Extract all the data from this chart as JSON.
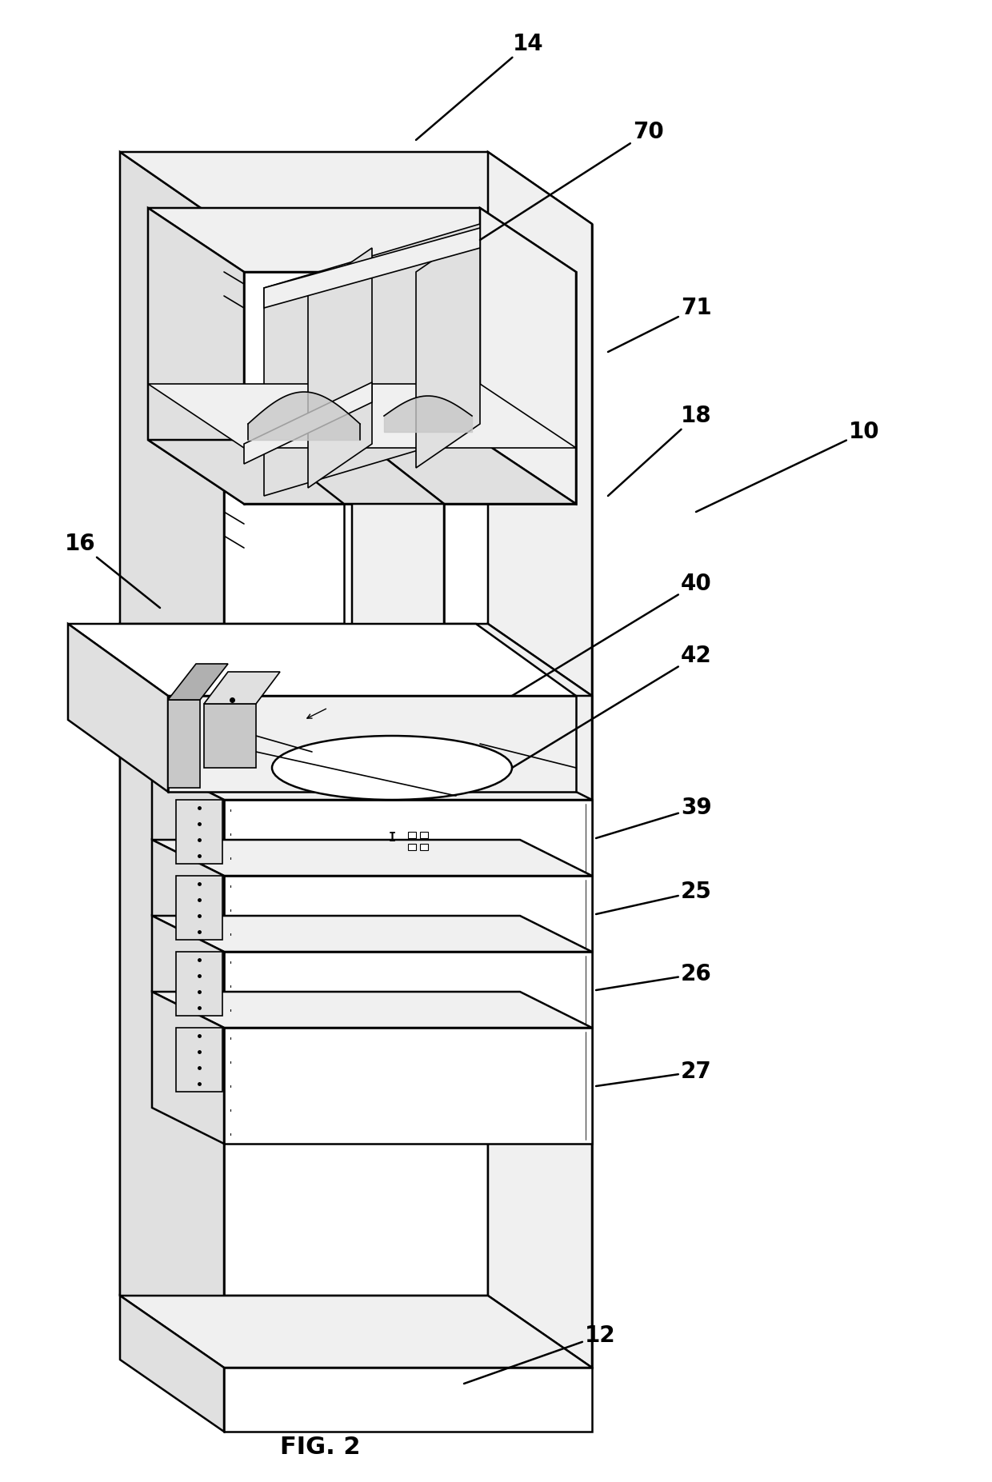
{
  "bg_color": "#ffffff",
  "line_color": "#000000",
  "fig_label": "FIG. 2",
  "lw_main": 1.8,
  "lw_thin": 1.2,
  "fs_label": 20,
  "fs_fig": 22,
  "fill_white": "#ffffff",
  "fill_light": "#f0f0f0",
  "fill_medium": "#e0e0e0",
  "fill_dark": "#c8c8c8",
  "fill_darker": "#b0b0b0"
}
